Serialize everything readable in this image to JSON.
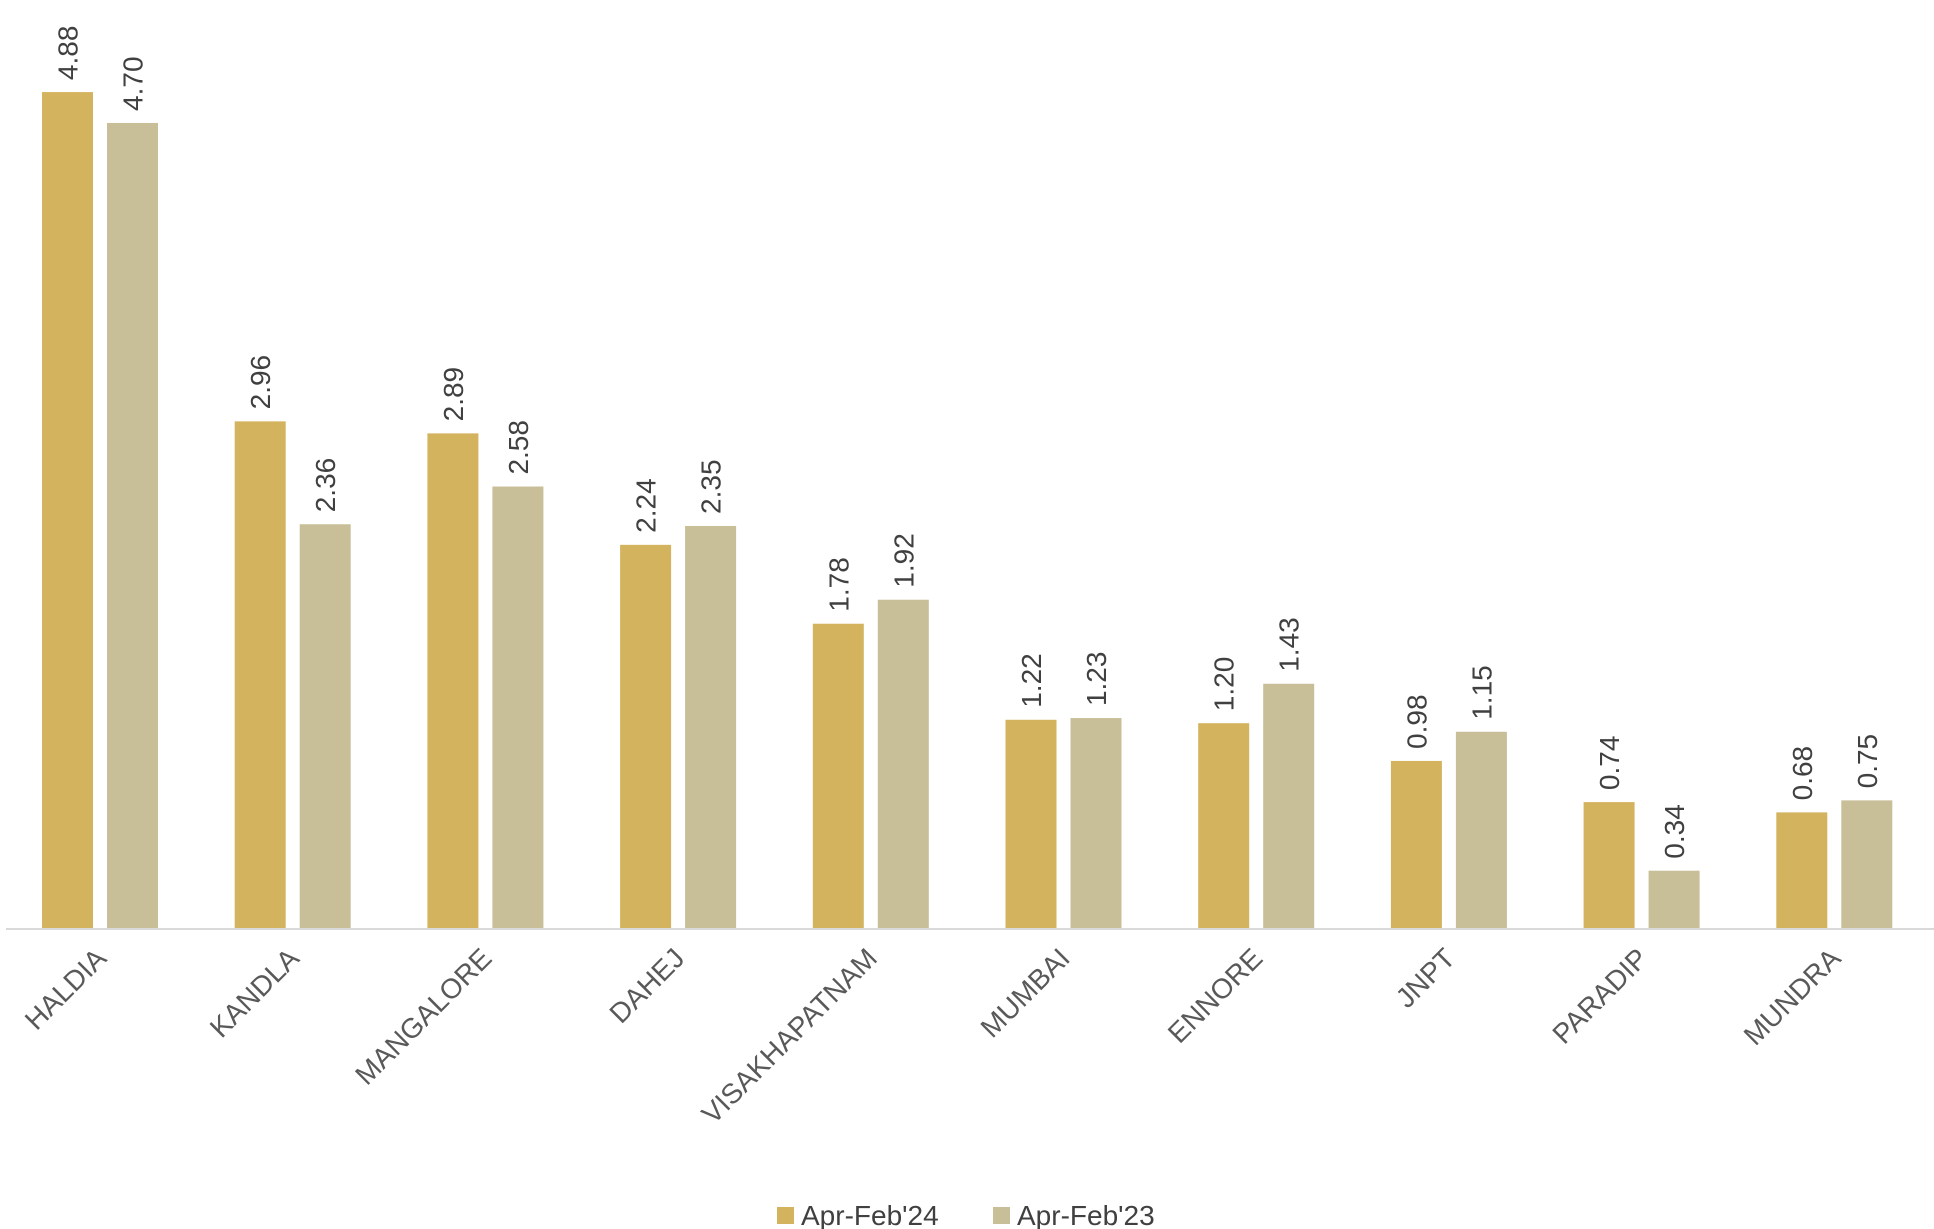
{
  "chart_data": {
    "type": "bar",
    "title": "",
    "xlabel": "",
    "ylabel": "",
    "ylim": [
      0,
      5.2
    ],
    "grid": false,
    "legend_position": "bottom",
    "categories": [
      "HALDIA",
      "KANDLA",
      "MANGALORE",
      "DAHEJ",
      "VISAKHAPATNAM",
      "MUMBAI",
      "ENNORE",
      "JNPT",
      "PARADIP",
      "MUNDRA"
    ],
    "series": [
      {
        "name": "Apr-Feb'24",
        "color": "#d4b35f",
        "values": [
          4.88,
          2.96,
          2.89,
          2.24,
          1.78,
          1.22,
          1.2,
          0.98,
          0.74,
          0.68
        ],
        "labels": [
          "4.88",
          "2.96",
          "2.89",
          "2.24",
          "1.78",
          "1.22",
          "1.20",
          "0.98",
          "0.74",
          "0.68"
        ]
      },
      {
        "name": "Apr-Feb'23",
        "color": "#c8bf98",
        "values": [
          4.7,
          2.36,
          2.58,
          2.35,
          1.92,
          1.23,
          1.43,
          1.15,
          0.34,
          0.75
        ],
        "labels": [
          "4.70",
          "2.36",
          "2.58",
          "2.35",
          "1.92",
          "1.23",
          "1.43",
          "1.15",
          "0.34",
          "0.75"
        ]
      }
    ]
  }
}
